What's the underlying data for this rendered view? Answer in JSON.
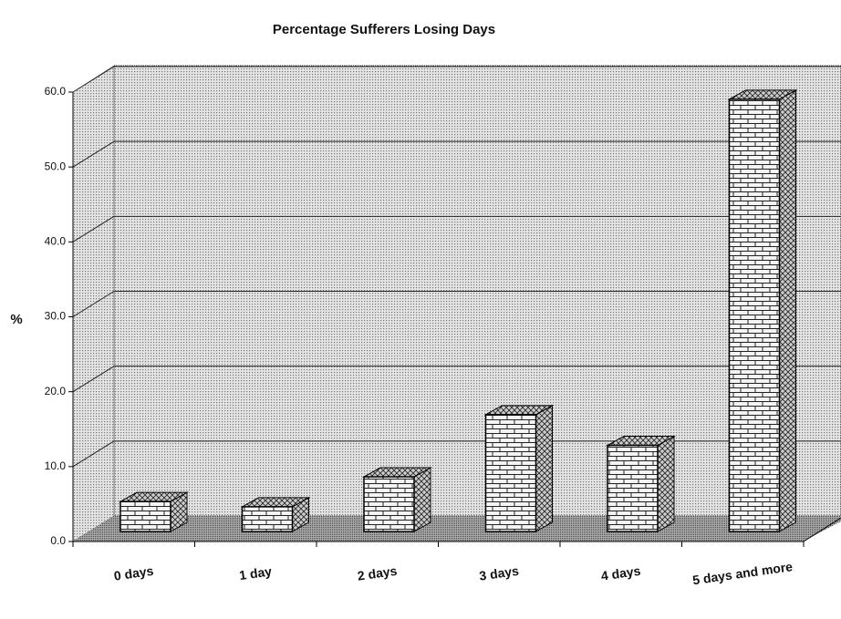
{
  "chart_data": {
    "type": "bar3d",
    "title": "Percentage Sufferers Losing Days",
    "y_label": "%",
    "categories": [
      "0 days",
      "1 day",
      "2 days",
      "3 days",
      "4 days",
      "5 days and more"
    ],
    "values": [
      4.0,
      3.3,
      7.3,
      15.6,
      11.5,
      57.7
    ],
    "ylim": [
      0,
      60
    ],
    "yticks": [
      {
        "value": 0,
        "label": "0.0"
      },
      {
        "value": 10,
        "label": "10.0"
      },
      {
        "value": 20,
        "label": "20.0"
      },
      {
        "value": 30,
        "label": "30.0"
      },
      {
        "value": 40,
        "label": "40.0"
      },
      {
        "value": 50,
        "label": "50.0"
      },
      {
        "value": 60,
        "label": "60.0"
      }
    ],
    "grid": true
  }
}
